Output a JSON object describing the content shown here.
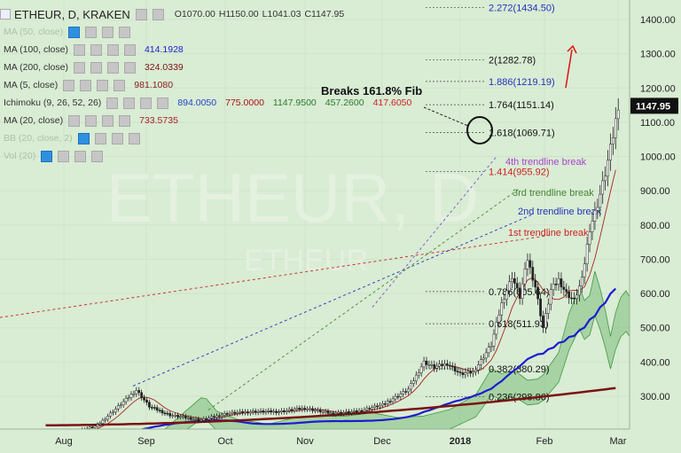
{
  "header": {
    "symbol": "ETHEUR, D, KRAKEN",
    "ohlc": [
      "O1070.00",
      "H1150.00",
      "L1041.03",
      "C1147.95"
    ]
  },
  "indicators": [
    {
      "name": "MA (50, close)",
      "values": [],
      "dim": true
    },
    {
      "name": "MA (100, close)",
      "values": [
        {
          "v": "414.1928",
          "color": "#1c1ccf"
        }
      ]
    },
    {
      "name": "MA (200, close)",
      "values": [
        {
          "v": "324.0339",
          "color": "#7a1212"
        }
      ]
    },
    {
      "name": "MA (5, close)",
      "values": [
        {
          "v": "981.1080",
          "color": "#8a1a1a"
        }
      ]
    },
    {
      "name": "Ichimoku (9, 26, 52, 26)",
      "values": [
        {
          "v": "894.0050",
          "color": "#2244cc"
        },
        {
          "v": "775.0000",
          "color": "#aa1111"
        },
        {
          "v": "1147.9500",
          "color": "#2a7a2a"
        },
        {
          "v": "457.2600",
          "color": "#2a7a2a"
        },
        {
          "v": "417.6050",
          "color": "#cc2222"
        }
      ]
    },
    {
      "name": "MA (20, close)",
      "values": [
        {
          "v": "733.5735",
          "color": "#aa2222"
        }
      ]
    },
    {
      "name": "BB (20, close, 2)",
      "values": [],
      "dim": true
    },
    {
      "name": "Vol (20)",
      "values": [],
      "dim": true
    }
  ],
  "watermark": {
    "big": "ETHEUR, D",
    "small": "ETHEUR"
  },
  "chart_data": {
    "type": "candlestick",
    "title": "ETHEUR, D, KRAKEN",
    "x_axis_labels": [
      "Aug",
      "Sep",
      "Oct",
      "Nov",
      "Dec",
      "2018",
      "Feb",
      "Mar"
    ],
    "y_axis_labels": [
      300,
      400,
      500,
      600,
      700,
      800,
      900,
      1000,
      1100,
      1200,
      1300,
      1400
    ],
    "last_price": "1147.95",
    "fib_levels": [
      {
        "label": "2.272(1434.50)",
        "price": 1434.5,
        "color": "#2233bb"
      },
      {
        "label": "2(1282.78)",
        "price": 1282.78,
        "color": "#111111"
      },
      {
        "label": "1.886(1219.19)",
        "price": 1219.19,
        "color": "#2233bb"
      },
      {
        "label": "1.764(1151.14)",
        "price": 1151.14,
        "color": "#111111"
      },
      {
        "label": "1.618(1069.71)",
        "price": 1069.71,
        "color": "#111111"
      },
      {
        "label": "1.414(955.92)",
        "price": 955.92,
        "color": "#cc2222"
      },
      {
        "label": "0.786(605.64)",
        "price": 605.64,
        "color": "#111111"
      },
      {
        "label": "0.618(511.93)",
        "price": 511.93,
        "color": "#111111"
      },
      {
        "label": "0.382(380.29)",
        "price": 380.29,
        "color": "#111111"
      },
      {
        "label": "0.236(298.86)",
        "price": 298.86,
        "color": "#111111"
      }
    ],
    "trendline_labels": [
      {
        "text": "4th trendline break",
        "color": "#aa44cc"
      },
      {
        "text": "3rd trendline break",
        "color": "#448833"
      },
      {
        "text": "2nd trendline break",
        "color": "#2233bb"
      },
      {
        "text": "1st trendline break",
        "color": "#cc2222"
      }
    ],
    "annotation": "Breaks 161.8% Fib",
    "colors": {
      "bull": "#ffffff",
      "bear": "#222222",
      "ma100": "#1c1ccf",
      "ma200": "#7a1212",
      "ma5": "#aa2222",
      "cloud": "#4ba24b"
    }
  }
}
